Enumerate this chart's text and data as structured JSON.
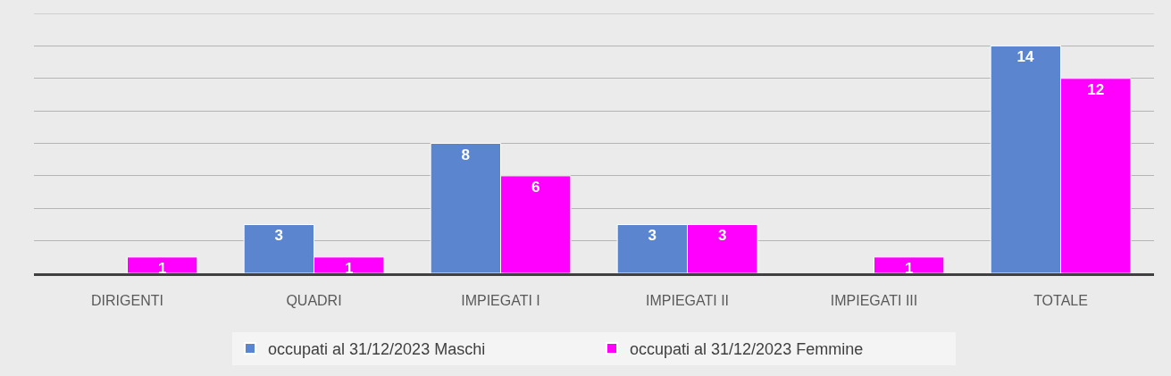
{
  "chart_data": {
    "type": "bar",
    "categories": [
      "DIRIGENTI",
      "QUADRI",
      "IMPIEGATI I",
      "IMPIEGATI II",
      "IMPIEGATI III",
      "TOTALE"
    ],
    "series": [
      {
        "name": "occupati al 31/12/2023 Maschi",
        "color": "#5b86cf",
        "values": [
          null,
          3,
          8,
          3,
          null,
          14
        ],
        "value_labels": [
          null,
          "3",
          "8",
          "3",
          null,
          "14"
        ]
      },
      {
        "name": "occupati al 31/12/2023 Femmine",
        "color": "#ff00ff",
        "values": [
          1,
          1,
          6,
          3,
          1,
          12
        ],
        "value_labels": [
          "1",
          "1",
          "6",
          "3",
          "1",
          "12"
        ]
      }
    ],
    "ylim": [
      0,
      16
    ],
    "yticks": [
      {
        "value": 0,
        "label": null
      },
      {
        "value": 2,
        "label": null
      },
      {
        "value": 4,
        "label": null
      },
      {
        "value": 6,
        "label": null
      },
      {
        "value": 8,
        "label": null
      },
      {
        "value": 10,
        "label": null
      },
      {
        "value": 12,
        "label": null
      },
      {
        "value": 14,
        "label": null
      },
      {
        "value": 16,
        "label": null
      }
    ],
    "grid": "y",
    "legend": "bottom",
    "tick_labels": "x"
  }
}
